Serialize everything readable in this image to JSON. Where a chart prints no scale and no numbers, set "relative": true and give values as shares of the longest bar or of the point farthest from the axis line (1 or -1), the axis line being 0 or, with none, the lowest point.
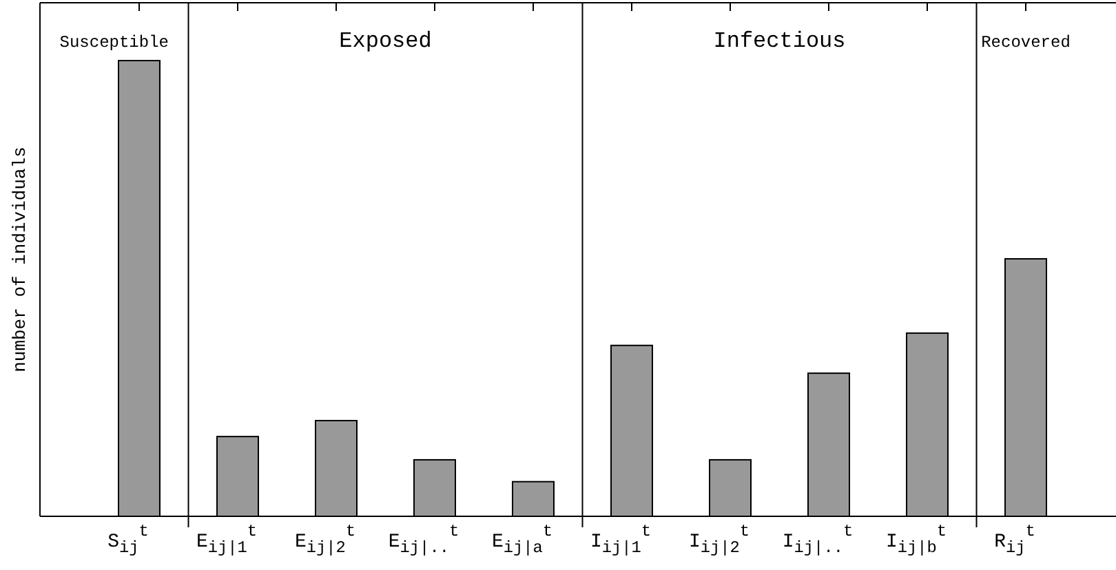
{
  "chart_data": {
    "type": "bar",
    "relative": true,
    "ylabel": "number of individuals",
    "color": "#999999",
    "categories": [
      "S$_{ij}$$^{t}$",
      "E$_{ij|1}$$^{t}$",
      "E$_{ij|2}$$^{t}$",
      "E$_{ij|..}$$^{t}$",
      "E$_{ij|a}$$^{t}$",
      "I$_{ij|1}$$^{t}$",
      "I$_{ij|2}$$^{t}$",
      "I$_{ij|..}$$^{t}$",
      "I$_{ij|b}$$^{t}$",
      "R$_{ij}$$^{t}$"
    ],
    "values": [
      1,
      0.175,
      0.21,
      0.124,
      0.076,
      0.375,
      0.124,
      0.314,
      0.402,
      0.565
    ],
    "annotations": [
      "Susceptible",
      "Exposed",
      "Infectious",
      "Recovered"
    ],
    "grid": false
  }
}
